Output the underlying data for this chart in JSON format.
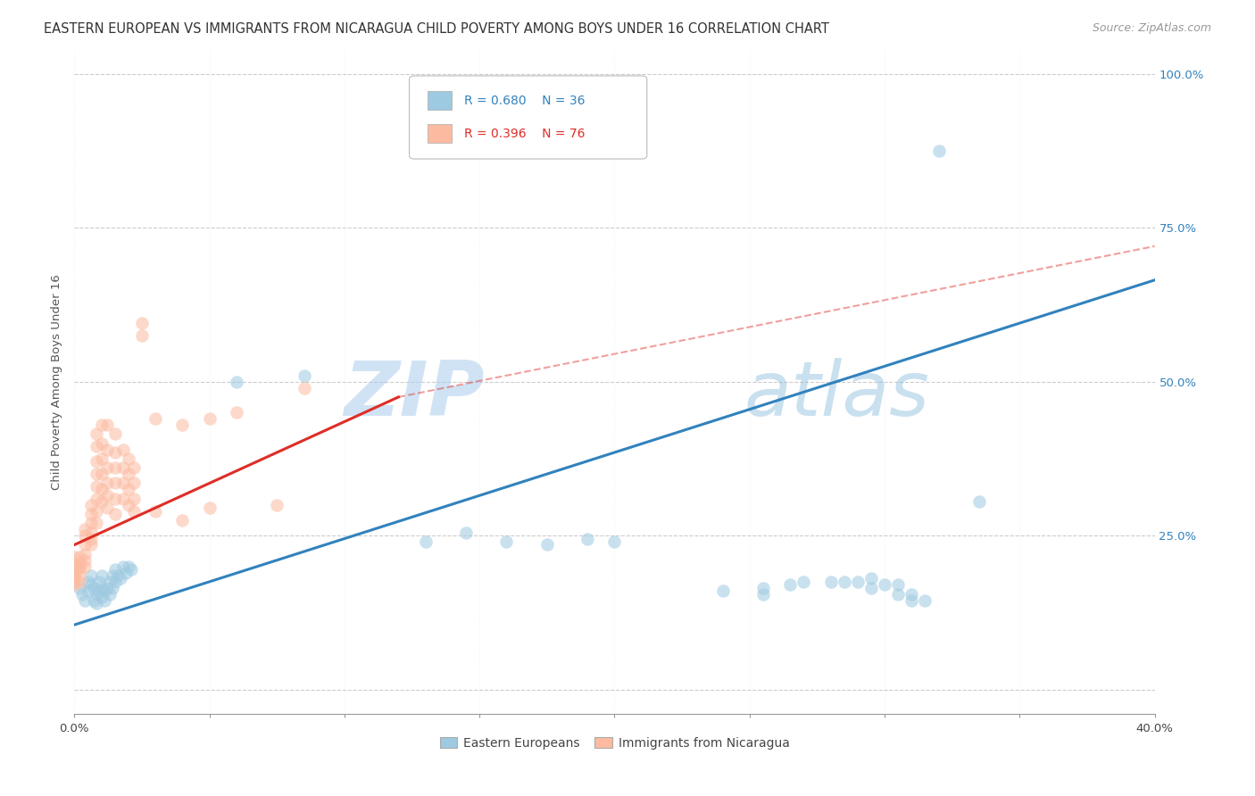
{
  "title": "EASTERN EUROPEAN VS IMMIGRANTS FROM NICARAGUA CHILD POVERTY AMONG BOYS UNDER 16 CORRELATION CHART",
  "source": "Source: ZipAtlas.com",
  "ylabel": "Child Poverty Among Boys Under 16",
  "yticks": [
    0.0,
    0.25,
    0.5,
    0.75,
    1.0
  ],
  "ytick_labels": [
    "",
    "25.0%",
    "50.0%",
    "75.0%",
    "100.0%"
  ],
  "watermark_zip": "ZIP",
  "watermark_atlas": "atlas",
  "blue_scatter": [
    [
      0.0,
      0.195
    ],
    [
      0.002,
      0.165
    ],
    [
      0.003,
      0.155
    ],
    [
      0.004,
      0.145
    ],
    [
      0.005,
      0.175
    ],
    [
      0.005,
      0.16
    ],
    [
      0.006,
      0.185
    ],
    [
      0.006,
      0.17
    ],
    [
      0.007,
      0.165
    ],
    [
      0.007,
      0.145
    ],
    [
      0.008,
      0.155
    ],
    [
      0.008,
      0.14
    ],
    [
      0.009,
      0.175
    ],
    [
      0.009,
      0.16
    ],
    [
      0.01,
      0.185
    ],
    [
      0.01,
      0.165
    ],
    [
      0.01,
      0.15
    ],
    [
      0.011,
      0.16
    ],
    [
      0.011,
      0.145
    ],
    [
      0.012,
      0.165
    ],
    [
      0.013,
      0.175
    ],
    [
      0.013,
      0.155
    ],
    [
      0.014,
      0.185
    ],
    [
      0.014,
      0.165
    ],
    [
      0.015,
      0.195
    ],
    [
      0.015,
      0.175
    ],
    [
      0.016,
      0.185
    ],
    [
      0.017,
      0.18
    ],
    [
      0.018,
      0.2
    ],
    [
      0.019,
      0.19
    ],
    [
      0.02,
      0.2
    ],
    [
      0.021,
      0.195
    ],
    [
      0.06,
      0.5
    ],
    [
      0.085,
      0.51
    ],
    [
      0.13,
      0.24
    ],
    [
      0.145,
      0.255
    ],
    [
      0.16,
      0.24
    ],
    [
      0.175,
      0.235
    ],
    [
      0.19,
      0.245
    ],
    [
      0.2,
      0.24
    ],
    [
      0.24,
      0.16
    ],
    [
      0.255,
      0.155
    ],
    [
      0.255,
      0.165
    ],
    [
      0.265,
      0.17
    ],
    [
      0.27,
      0.175
    ],
    [
      0.28,
      0.175
    ],
    [
      0.285,
      0.175
    ],
    [
      0.29,
      0.175
    ],
    [
      0.295,
      0.18
    ],
    [
      0.295,
      0.165
    ],
    [
      0.3,
      0.17
    ],
    [
      0.305,
      0.17
    ],
    [
      0.305,
      0.155
    ],
    [
      0.31,
      0.155
    ],
    [
      0.31,
      0.145
    ],
    [
      0.315,
      0.145
    ],
    [
      0.32,
      0.875
    ],
    [
      0.335,
      0.305
    ]
  ],
  "pink_scatter": [
    [
      0.0,
      0.215
    ],
    [
      0.0,
      0.205
    ],
    [
      0.0,
      0.2
    ],
    [
      0.0,
      0.195
    ],
    [
      0.0,
      0.185
    ],
    [
      0.0,
      0.18
    ],
    [
      0.0,
      0.175
    ],
    [
      0.0,
      0.17
    ],
    [
      0.002,
      0.215
    ],
    [
      0.002,
      0.205
    ],
    [
      0.002,
      0.2
    ],
    [
      0.002,
      0.195
    ],
    [
      0.002,
      0.185
    ],
    [
      0.002,
      0.175
    ],
    [
      0.004,
      0.26
    ],
    [
      0.004,
      0.25
    ],
    [
      0.004,
      0.235
    ],
    [
      0.004,
      0.22
    ],
    [
      0.004,
      0.21
    ],
    [
      0.004,
      0.2
    ],
    [
      0.006,
      0.3
    ],
    [
      0.006,
      0.285
    ],
    [
      0.006,
      0.27
    ],
    [
      0.006,
      0.255
    ],
    [
      0.006,
      0.245
    ],
    [
      0.006,
      0.235
    ],
    [
      0.008,
      0.415
    ],
    [
      0.008,
      0.395
    ],
    [
      0.008,
      0.37
    ],
    [
      0.008,
      0.35
    ],
    [
      0.008,
      0.33
    ],
    [
      0.008,
      0.31
    ],
    [
      0.008,
      0.29
    ],
    [
      0.008,
      0.27
    ],
    [
      0.01,
      0.43
    ],
    [
      0.01,
      0.4
    ],
    [
      0.01,
      0.375
    ],
    [
      0.01,
      0.35
    ],
    [
      0.01,
      0.325
    ],
    [
      0.01,
      0.305
    ],
    [
      0.012,
      0.43
    ],
    [
      0.012,
      0.39
    ],
    [
      0.012,
      0.36
    ],
    [
      0.012,
      0.335
    ],
    [
      0.012,
      0.315
    ],
    [
      0.012,
      0.295
    ],
    [
      0.015,
      0.415
    ],
    [
      0.015,
      0.385
    ],
    [
      0.015,
      0.36
    ],
    [
      0.015,
      0.335
    ],
    [
      0.015,
      0.31
    ],
    [
      0.015,
      0.285
    ],
    [
      0.018,
      0.39
    ],
    [
      0.018,
      0.36
    ],
    [
      0.018,
      0.335
    ],
    [
      0.018,
      0.31
    ],
    [
      0.02,
      0.375
    ],
    [
      0.02,
      0.35
    ],
    [
      0.02,
      0.325
    ],
    [
      0.02,
      0.3
    ],
    [
      0.022,
      0.36
    ],
    [
      0.022,
      0.335
    ],
    [
      0.022,
      0.31
    ],
    [
      0.022,
      0.29
    ],
    [
      0.025,
      0.595
    ],
    [
      0.025,
      0.575
    ],
    [
      0.03,
      0.44
    ],
    [
      0.03,
      0.29
    ],
    [
      0.04,
      0.43
    ],
    [
      0.04,
      0.275
    ],
    [
      0.05,
      0.44
    ],
    [
      0.05,
      0.295
    ],
    [
      0.06,
      0.45
    ],
    [
      0.075,
      0.3
    ],
    [
      0.085,
      0.49
    ]
  ],
  "blue_line": {
    "x0": 0.0,
    "y0": 0.105,
    "x1": 0.4,
    "y1": 0.665
  },
  "pink_line": {
    "x0": 0.0,
    "y0": 0.235,
    "x1": 0.12,
    "y1": 0.475
  },
  "pink_line_ext": {
    "x0": 0.12,
    "y0": 0.475,
    "x1": 0.4,
    "y1": 0.72
  },
  "xlim": [
    0.0,
    0.4
  ],
  "ylim": [
    -0.04,
    1.04
  ],
  "blue_color": "#9ecae1",
  "pink_color": "#fcbba1",
  "blue_line_color": "#3182bd",
  "pink_line_color": "#de2d26",
  "pink_ext_color": "#de2d26",
  "title_fontsize": 10.5,
  "source_fontsize": 9,
  "axis_fontsize": 9.5,
  "watermark_color": "#c8dff0",
  "background_color": "#ffffff"
}
